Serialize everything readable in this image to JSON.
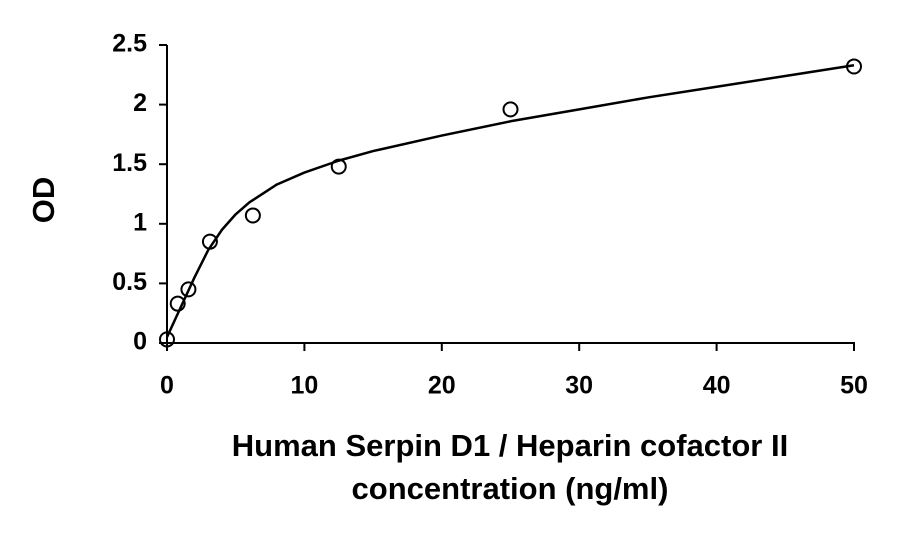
{
  "chart_data": {
    "type": "scatter",
    "x_label": [
      "Human Serpin D1 / Heparin cofactor II",
      "concentration (ng/ml)"
    ],
    "y_label": "OD",
    "xlim": [
      0,
      50
    ],
    "xticks": [
      0,
      10,
      20,
      30,
      40,
      50
    ],
    "ylim": [
      0,
      2.5
    ],
    "yticks": [
      0,
      0.5,
      1,
      1.5,
      2,
      2.5
    ],
    "series": [
      {
        "color": "#000000",
        "marker": "circle",
        "x": [
          0,
          0.78,
          1.56,
          3.125,
          6.25,
          12.5,
          25,
          50
        ],
        "values": [
          0.03,
          0.33,
          0.45,
          0.85,
          1.07,
          1.48,
          1.96,
          2.32
        ]
      },
      {
        "color": "#000000",
        "marker": "line",
        "x": [
          0,
          1,
          2,
          3,
          4,
          5,
          6,
          8,
          10,
          12.5,
          15,
          20,
          25,
          30,
          35,
          40,
          45,
          50
        ],
        "values": [
          0.05,
          0.3,
          0.55,
          0.78,
          0.95,
          1.08,
          1.18,
          1.33,
          1.43,
          1.53,
          1.61,
          1.74,
          1.86,
          1.96,
          2.06,
          2.15,
          2.24,
          2.33
        ]
      }
    ]
  }
}
